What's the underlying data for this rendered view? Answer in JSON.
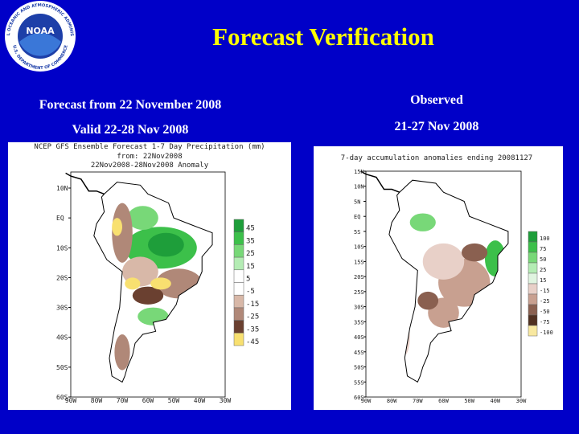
{
  "header": {
    "title": "Forecast Verification",
    "logo": {
      "name": "NOAA",
      "ring_top": "NATIONAL OCEANIC AND ATMOSPHERIC ADMINISTRATION",
      "ring_bottom": "U.S. DEPARTMENT OF COMMERCE"
    }
  },
  "panels": [
    {
      "heading": "Forecast from  22 November  2008",
      "subheading": "Valid 22-28 Nov 2008",
      "map": {
        "title_lines": [
          "NCEP GFS Ensemble Forecast 1-7 Day Precipitation (mm)",
          "from: 22Nov2008",
          "22Nov2008-28Nov2008 Anomaly"
        ],
        "lat_labels": [
          "10N",
          "EQ",
          "10S",
          "20S",
          "30S",
          "40S",
          "50S",
          "60S"
        ],
        "lon_labels": [
          "90W",
          "80W",
          "70W",
          "60W",
          "50W",
          "40W",
          "30W"
        ],
        "legend": {
          "labels": [
            "45",
            "35",
            "25",
            "15",
            "5",
            "-5",
            "-15",
            "-25",
            "-35",
            "-45"
          ],
          "colors": [
            "#1e9e3a",
            "#3cc04a",
            "#78d878",
            "#b4ecb4",
            "#ffffff",
            "#ffffff",
            "#d8b8a8",
            "#b08878",
            "#6a4030",
            "#f8e070"
          ]
        }
      }
    },
    {
      "heading": "Observed",
      "subheading": "21-27 Nov 2008",
      "map": {
        "title_lines": [
          "7-day accumulation anomalies ending 20081127"
        ],
        "lat_labels": [
          "15N",
          "10N",
          "5N",
          "EQ",
          "5S",
          "10S",
          "15S",
          "20S",
          "25S",
          "30S",
          "35S",
          "40S",
          "45S",
          "50S",
          "55S",
          "60S"
        ],
        "lon_labels": [
          "90W",
          "80W",
          "70W",
          "60W",
          "50W",
          "40W",
          "30W"
        ],
        "legend": {
          "labels": [
            "100",
            "75",
            "50",
            "25",
            "15",
            "-15",
            "-25",
            "-50",
            "-75",
            "-100"
          ],
          "colors": [
            "#1e9e3a",
            "#3cc04a",
            "#78d878",
            "#b4ecb4",
            "#e0f4e0",
            "#e8d0c8",
            "#c8a090",
            "#8a6050",
            "#503020",
            "#f8e8a0"
          ]
        }
      }
    }
  ]
}
